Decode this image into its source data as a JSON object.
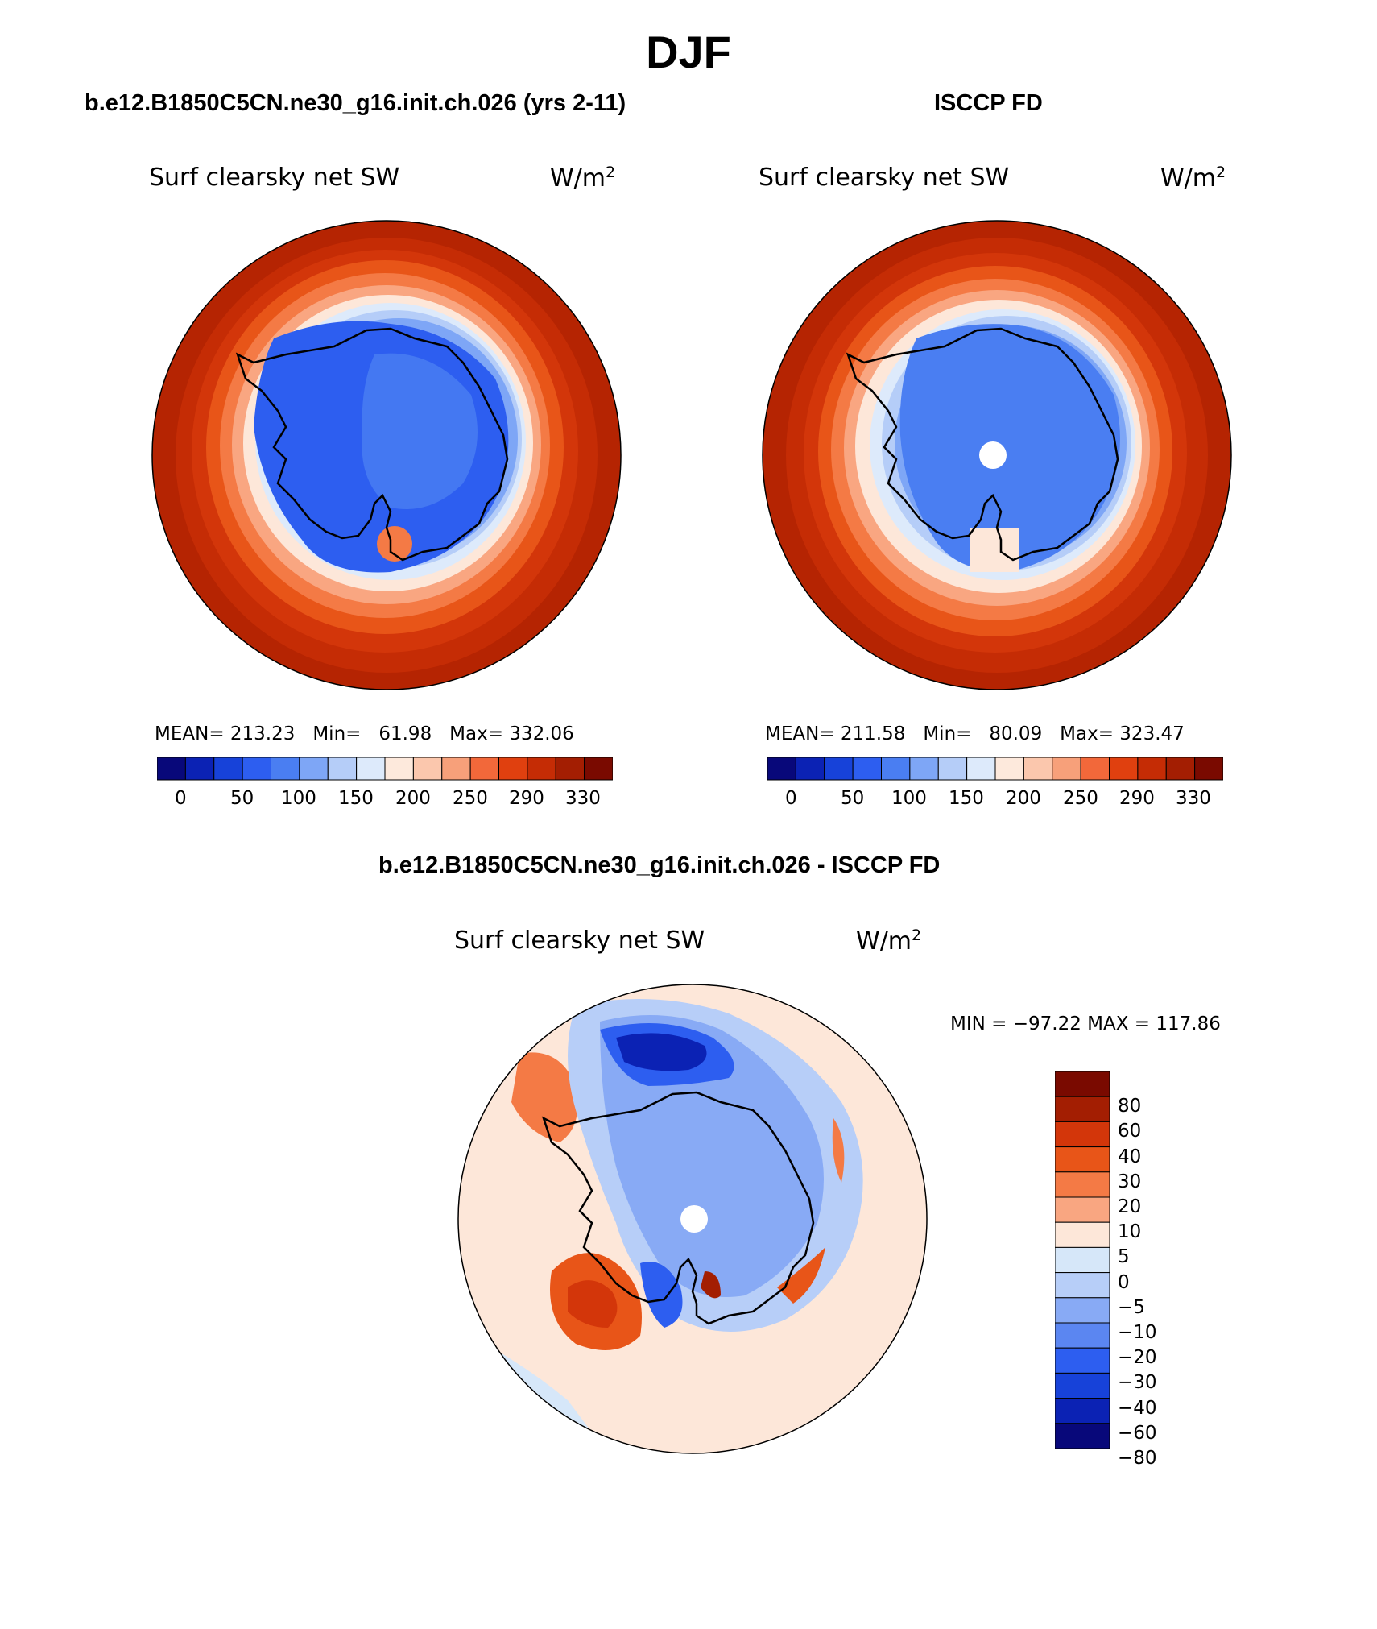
{
  "figure": {
    "title": "DJF"
  },
  "panels": [
    {
      "title": "b.e12.B1850C5CN.ne30_g16.init.ch.026 (yrs 2-11)",
      "variable": "Surf clearsky net SW",
      "units_base": "W/m",
      "units_exp": "2",
      "stats": {
        "mean_label": "MEAN=",
        "mean": "213.23",
        "min_label": "Min=",
        "min": "61.98",
        "max_label": "Max=",
        "max": "332.06"
      },
      "colorbar_ticks": [
        "0",
        "50",
        "100",
        "150",
        "200",
        "250",
        "290",
        "330"
      ],
      "has_pole_hole": false
    },
    {
      "title": "ISCCP FD",
      "variable": "Surf clearsky net SW",
      "units_base": "W/m",
      "units_exp": "2",
      "stats": {
        "mean_label": "MEAN=",
        "mean": "211.58",
        "min_label": "Min=",
        "min": "80.09",
        "max_label": "Max=",
        "max": "323.47"
      },
      "colorbar_ticks": [
        "0",
        "50",
        "100",
        "150",
        "200",
        "250",
        "290",
        "330"
      ],
      "has_pole_hole": true
    },
    {
      "title": "b.e12.B1850C5CN.ne30_g16.init.ch.026 - ISCCP FD",
      "variable": "Surf clearsky net SW",
      "units_base": "W/m",
      "units_exp": "2",
      "range_text": "MIN = −97.22 MAX = 117.86",
      "colorbar_labels": [
        "80",
        "60",
        "40",
        "30",
        "20",
        "10",
        "5",
        "0",
        "−5",
        "−10",
        "−20",
        "−30",
        "−40",
        "−60",
        "−80"
      ],
      "has_pole_hole": true
    }
  ],
  "colors": {
    "abs_scale": [
      "#08087a",
      "#0b22b4",
      "#1742d9",
      "#2d5ef0",
      "#4a7ef2",
      "#7ea6f6",
      "#b5cdf8",
      "#ddeafb",
      "#fde9dc",
      "#fbc7ad",
      "#f7a07a",
      "#f2683a",
      "#e0400f",
      "#c52c05",
      "#a31e02",
      "#7a0a00"
    ],
    "diff_scale": [
      "#7a0a00",
      "#a31e02",
      "#d3360a",
      "#e85518",
      "#f47a45",
      "#f9a681",
      "#fde7d9",
      "#d6e7f9",
      "#b7cef8",
      "#88aaf5",
      "#5b86f1",
      "#2d5ef0",
      "#1742d9",
      "#0b22b4",
      "#08087a"
    ],
    "coastline": "#000000",
    "background": "#ffffff"
  },
  "chart_data": [
    {
      "type": "heatmap",
      "projection": "south-polar-stereographic",
      "title": "Surf clearsky net SW",
      "subtitle": "b.e12.B1850C5CN.ne30_g16.init.ch.026 (yrs 2-11)",
      "units": "W/m2",
      "levels": [
        0,
        50,
        100,
        150,
        200,
        250,
        290,
        330
      ],
      "mean": 213.23,
      "min": 61.98,
      "max": 332.06
    },
    {
      "type": "heatmap",
      "projection": "south-polar-stereographic",
      "title": "Surf clearsky net SW",
      "subtitle": "ISCCP FD",
      "units": "W/m2",
      "levels": [
        0,
        50,
        100,
        150,
        200,
        250,
        290,
        330
      ],
      "mean": 211.58,
      "min": 80.09,
      "max": 323.47
    },
    {
      "type": "heatmap",
      "projection": "south-polar-stereographic",
      "title": "Surf clearsky net SW",
      "subtitle": "b.e12.B1850C5CN.ne30_g16.init.ch.026 - ISCCP FD",
      "units": "W/m2",
      "levels": [
        80,
        60,
        40,
        30,
        20,
        10,
        5,
        0,
        -5,
        -10,
        -20,
        -30,
        -40,
        -60,
        -80
      ],
      "min": -97.22,
      "max": 117.86
    }
  ]
}
